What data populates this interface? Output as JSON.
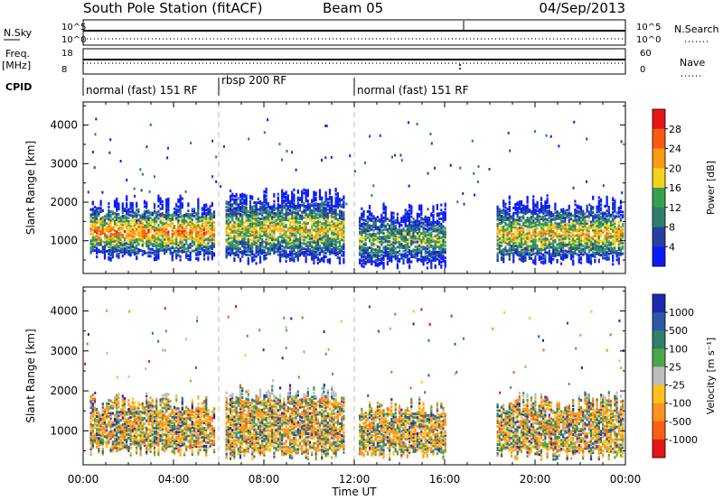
{
  "header": {
    "station": "South Pole Station (fitACF)",
    "beam": "Beam 05",
    "date": "04/Sep/2013"
  },
  "summary_panels": {
    "nsky_label": "N.Sky",
    "nsky_ticks": [
      "10^5",
      "10^0"
    ],
    "nsearch_label": "N.Search",
    "freq_label": "Freq.",
    "freq_unit": "[MHz]",
    "freq_ticks": [
      "18",
      "8"
    ],
    "nave_label": "Nave",
    "nave_ticks": [
      "60",
      "0"
    ],
    "cpid_label": "CPID",
    "cpid_segments": [
      {
        "label": "normal (fast) 151 RF",
        "start_hour": 0,
        "end_hour": 6
      },
      {
        "label": "rbsp 200 RF",
        "start_hour": 6,
        "end_hour": 12
      },
      {
        "label": "normal (fast) 151 RF",
        "start_hour": 12,
        "end_hour": 24
      }
    ]
  },
  "chart_data": [
    {
      "type": "heatmap",
      "panel": "power",
      "ylabel": "Slant Range [km]",
      "xlabel": "Time UT",
      "x_range_hours": [
        0,
        24
      ],
      "ylim": [
        150,
        4600
      ],
      "y_ticks": [
        1000,
        2000,
        3000,
        4000
      ],
      "x_ticks": [
        "00:00",
        "04:00",
        "08:00",
        "12:00",
        "16:00",
        "20:00",
        "00:00"
      ],
      "colorbar": {
        "label": "Power [dB]",
        "ticks": [
          "28",
          "24",
          "20",
          "16",
          "12",
          "8",
          "4"
        ],
        "colors": [
          "#0a1aff",
          "#25409e",
          "#2e7d6b",
          "#36a04e",
          "#f2d21a",
          "#ff9a12",
          "#ff5a10",
          "#e81515"
        ]
      },
      "regions": [
        {
          "t0": 0.3,
          "t1": 5.8,
          "r0": 600,
          "r1": 1800,
          "level": 0.75
        },
        {
          "t0": 6.3,
          "t1": 11.5,
          "r0": 500,
          "r1": 2000,
          "level": 0.6
        },
        {
          "t0": 12.2,
          "t1": 16.0,
          "r0": 400,
          "r1": 1600,
          "level": 0.45
        },
        {
          "t0": 18.3,
          "t1": 23.9,
          "r0": 500,
          "r1": 1800,
          "level": 0.65
        }
      ]
    },
    {
      "type": "heatmap",
      "panel": "velocity",
      "ylabel": "Slant Range [km]",
      "xlabel": "Time UT",
      "x_range_hours": [
        0,
        24
      ],
      "ylim": [
        150,
        4600
      ],
      "y_ticks": [
        1000,
        2000,
        3000,
        4000
      ],
      "x_ticks": [
        "00:00",
        "04:00",
        "08:00",
        "12:00",
        "16:00",
        "20:00",
        "00:00"
      ],
      "colorbar": {
        "label": "Velocity [m s⁻¹]",
        "ticks": [
          "1000",
          "500",
          "100",
          "25",
          "-25",
          "-100",
          "-500",
          "-1000"
        ],
        "colors": [
          "#1b2ab0",
          "#2c58a8",
          "#2f7f6a",
          "#4aa84a",
          "#bdbdbd",
          "#ffc21a",
          "#ff9320",
          "#ff6015",
          "#e81515"
        ]
      },
      "regions": [
        {
          "t0": 0.3,
          "t1": 5.8,
          "r0": 500,
          "r1": 1600,
          "level": 0.3
        },
        {
          "t0": 6.3,
          "t1": 11.5,
          "r0": 400,
          "r1": 1800,
          "level": 0.35
        },
        {
          "t0": 12.2,
          "t1": 16.0,
          "r0": 400,
          "r1": 1500,
          "level": 0.25
        },
        {
          "t0": 18.3,
          "t1": 23.9,
          "r0": 400,
          "r1": 1600,
          "level": 0.28
        }
      ]
    }
  ]
}
